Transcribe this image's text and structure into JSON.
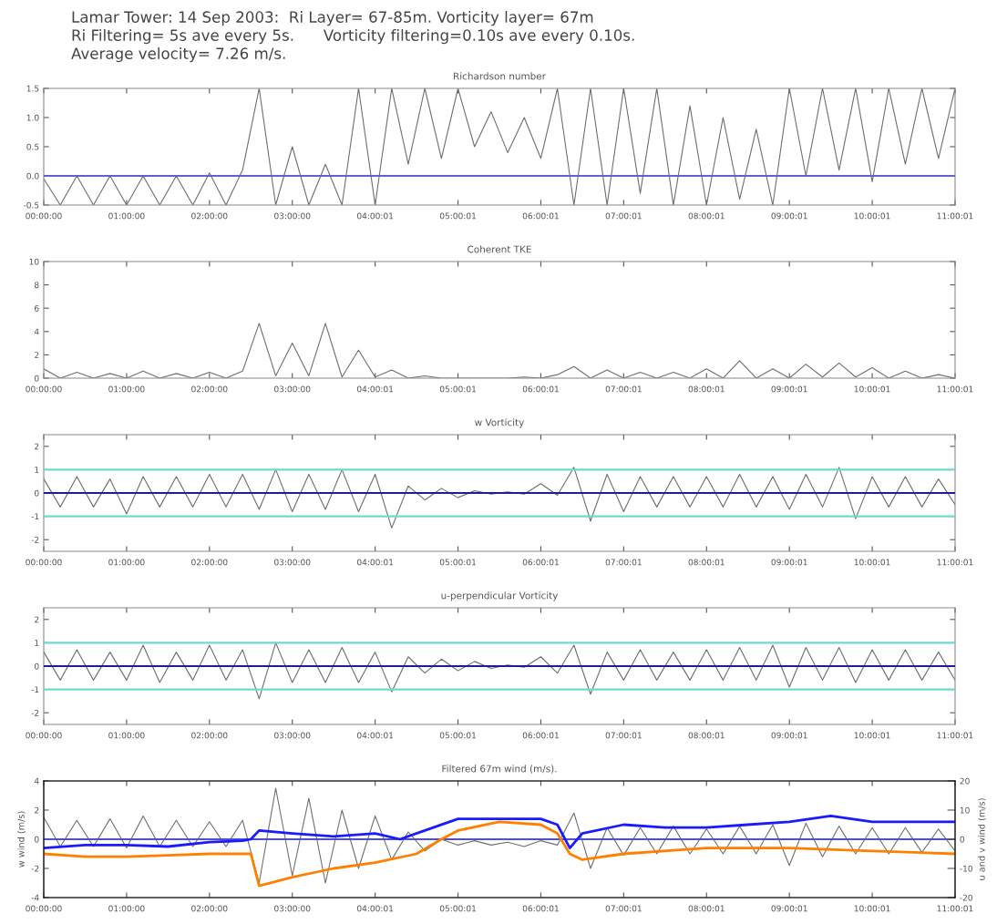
{
  "chart_data": [
    {
      "type": "line",
      "title": "Richardson number",
      "annotations": [
        "Lamar Tower: 14 Sep 2003:  Ri Layer= 67-85m. Vorticity layer= 67m",
        "Ri Filtering= 5s ave every 5s.      Vorticity filtering=0.10s ave every 0.10s.",
        "Average velocity= 7.26 m/s."
      ],
      "x": [
        0,
        0.2,
        0.4,
        0.6,
        0.8,
        1.0,
        1.2,
        1.4,
        1.6,
        1.8,
        2.0,
        2.2,
        2.4,
        2.6,
        2.8,
        3.0,
        3.2,
        3.4,
        3.6,
        3.8,
        4.0,
        4.2,
        4.4,
        4.6,
        4.8,
        5.0,
        5.2,
        5.4,
        5.6,
        5.8,
        6.0,
        6.2,
        6.4,
        6.6,
        6.8,
        7.0,
        7.2,
        7.4,
        7.6,
        7.8,
        8.0,
        8.2,
        8.4,
        8.6,
        8.8,
        9.0,
        9.2,
        9.4,
        9.6,
        9.8,
        10.0,
        10.2,
        10.4,
        10.6,
        10.8,
        11.0
      ],
      "series": [
        {
          "color": "#6e6e6e",
          "values": [
            -0.05,
            -0.5,
            0.0,
            -0.5,
            0.0,
            -0.5,
            0.0,
            -0.5,
            0.0,
            -0.5,
            0.05,
            -0.5,
            0.1,
            1.5,
            -0.5,
            0.5,
            -0.5,
            0.2,
            -0.5,
            1.5,
            -0.5,
            1.5,
            0.2,
            1.5,
            0.3,
            1.5,
            0.5,
            1.1,
            0.4,
            1.0,
            0.3,
            1.5,
            -0.5,
            1.5,
            -0.5,
            1.5,
            -0.3,
            1.5,
            -0.5,
            1.2,
            -0.5,
            1.0,
            -0.4,
            0.8,
            -0.5,
            1.5,
            0.0,
            1.5,
            0.1,
            1.5,
            -0.1,
            1.5,
            0.2,
            1.5,
            0.3,
            1.5
          ]
        }
      ],
      "xlim": [
        0,
        11.000278
      ],
      "xticks": [
        {
          "value": 0,
          "label": "00:00:00"
        },
        {
          "value": 1,
          "label": "01:00:00"
        },
        {
          "value": 2,
          "label": "02:00:00"
        },
        {
          "value": 3,
          "label": "03:00:00"
        },
        {
          "value": 4.000278,
          "label": "04:00:01"
        },
        {
          "value": 5.000278,
          "label": "05:00:01"
        },
        {
          "value": 6.000278,
          "label": "06:00:01"
        },
        {
          "value": 7.000278,
          "label": "07:00:01"
        },
        {
          "value": 8.000278,
          "label": "08:00:01"
        },
        {
          "value": 9.000278,
          "label": "09:00:01"
        },
        {
          "value": 10.000278,
          "label": "10:00:01"
        },
        {
          "value": 11.000278,
          "label": "11:00:01"
        }
      ],
      "ylim": [
        -0.5,
        1.5
      ],
      "yticks": [
        {
          "value": -0.5,
          "label": "-0.5"
        },
        {
          "value": 0,
          "label": "0.0"
        },
        {
          "value": 0.5,
          "label": "0.5"
        },
        {
          "value": 1,
          "label": "1.0"
        },
        {
          "value": 1.5,
          "label": "1.5"
        }
      ],
      "ref_lines": [
        {
          "axis": "y",
          "value": 0,
          "color": "#6060d0"
        }
      ],
      "grid": false,
      "legend": false
    },
    {
      "type": "line",
      "title": "Coherent TKE",
      "x": [
        0,
        0.2,
        0.4,
        0.6,
        0.8,
        1.0,
        1.2,
        1.4,
        1.6,
        1.8,
        2.0,
        2.2,
        2.4,
        2.6,
        2.8,
        3.0,
        3.2,
        3.4,
        3.6,
        3.8,
        4.0,
        4.2,
        4.4,
        4.6,
        4.8,
        5.0,
        5.2,
        5.4,
        5.6,
        5.8,
        6.0,
        6.2,
        6.4,
        6.6,
        6.8,
        7.0,
        7.2,
        7.4,
        7.6,
        7.8,
        8.0,
        8.2,
        8.4,
        8.6,
        8.8,
        9.0,
        9.2,
        9.4,
        9.6,
        9.8,
        10.0,
        10.2,
        10.4,
        10.6,
        10.8,
        11.0
      ],
      "series": [
        {
          "color": "#6e6e6e",
          "values": [
            0.8,
            0,
            0.5,
            0,
            0.4,
            0,
            0.6,
            0,
            0.4,
            0,
            0.5,
            0,
            0.6,
            4.7,
            0.2,
            3.0,
            0.2,
            4.7,
            0.1,
            2.4,
            0.1,
            0.7,
            0,
            0.2,
            0,
            0,
            0,
            0,
            0,
            0.1,
            0,
            0.3,
            1.0,
            0,
            0.7,
            0,
            0.5,
            0,
            0.5,
            0,
            0.8,
            0,
            1.5,
            0,
            0.8,
            0,
            1.2,
            0.1,
            1.3,
            0.1,
            0.9,
            0,
            0.6,
            0,
            0.3,
            0
          ]
        }
      ],
      "xlim": [
        0,
        11.000278
      ],
      "xticks": [
        {
          "value": 0,
          "label": "00:00:00"
        },
        {
          "value": 1,
          "label": "01:00:00"
        },
        {
          "value": 2,
          "label": "02:00:00"
        },
        {
          "value": 3,
          "label": "03:00:00"
        },
        {
          "value": 4.000278,
          "label": "04:00:01"
        },
        {
          "value": 5.000278,
          "label": "05:00:01"
        },
        {
          "value": 6.000278,
          "label": "06:00:01"
        },
        {
          "value": 7.000278,
          "label": "07:00:01"
        },
        {
          "value": 8.000278,
          "label": "08:00:01"
        },
        {
          "value": 9.000278,
          "label": "09:00:01"
        },
        {
          "value": 10.000278,
          "label": "10:00:01"
        },
        {
          "value": 11.000278,
          "label": "11:00:01"
        }
      ],
      "ylim": [
        0,
        10
      ],
      "yticks": [
        0,
        2,
        4,
        6,
        8,
        10
      ],
      "grid": false,
      "legend": false
    },
    {
      "type": "line",
      "title": "w Vorticity",
      "x": [
        0,
        0.2,
        0.4,
        0.6,
        0.8,
        1.0,
        1.2,
        1.4,
        1.6,
        1.8,
        2.0,
        2.2,
        2.4,
        2.6,
        2.8,
        3.0,
        3.2,
        3.4,
        3.6,
        3.8,
        4.0,
        4.2,
        4.4,
        4.6,
        4.8,
        5.0,
        5.2,
        5.4,
        5.6,
        5.8,
        6.0,
        6.2,
        6.4,
        6.6,
        6.8,
        7.0,
        7.2,
        7.4,
        7.6,
        7.8,
        8.0,
        8.2,
        8.4,
        8.6,
        8.8,
        9.0,
        9.2,
        9.4,
        9.6,
        9.8,
        10.0,
        10.2,
        10.4,
        10.6,
        10.8,
        11.0
      ],
      "series": [
        {
          "color": "#6e6e6e",
          "values": [
            0.6,
            -0.6,
            0.7,
            -0.6,
            0.6,
            -0.9,
            0.7,
            -0.6,
            0.7,
            -0.6,
            0.8,
            -0.6,
            0.8,
            -0.7,
            1.0,
            -0.8,
            0.8,
            -0.7,
            1.0,
            -0.8,
            0.8,
            -1.5,
            0.3,
            -0.3,
            0.2,
            -0.2,
            0.1,
            -0.05,
            0.05,
            -0.05,
            0.4,
            -0.1,
            1.1,
            -1.2,
            0.8,
            -0.8,
            0.7,
            -0.6,
            0.7,
            -0.6,
            0.7,
            -0.6,
            0.8,
            -0.6,
            0.7,
            -0.7,
            0.8,
            -0.6,
            1.1,
            -1.1,
            0.7,
            -0.6,
            0.7,
            -0.6,
            0.6,
            -0.5
          ]
        }
      ],
      "xlim": [
        0,
        11.000278
      ],
      "xticks": [
        {
          "value": 0,
          "label": "00:00:00"
        },
        {
          "value": 1,
          "label": "01:00:00"
        },
        {
          "value": 2,
          "label": "02:00:00"
        },
        {
          "value": 3,
          "label": "03:00:00"
        },
        {
          "value": 4.000278,
          "label": "04:00:01"
        },
        {
          "value": 5.000278,
          "label": "05:00:01"
        },
        {
          "value": 6.000278,
          "label": "06:00:01"
        },
        {
          "value": 7.000278,
          "label": "07:00:01"
        },
        {
          "value": 8.000278,
          "label": "08:00:01"
        },
        {
          "value": 9.000278,
          "label": "09:00:01"
        },
        {
          "value": 10.000278,
          "label": "10:00:01"
        },
        {
          "value": 11.000278,
          "label": "11:00:01"
        }
      ],
      "ylim": [
        -2.5,
        2.5
      ],
      "yticks": [
        -2,
        -1,
        0,
        1,
        2
      ],
      "ref_lines": [
        {
          "axis": "y",
          "value": 1,
          "color": "#70d8cc"
        },
        {
          "axis": "y",
          "value": -1,
          "color": "#70d8cc"
        },
        {
          "axis": "y",
          "value": 0,
          "color": "#1c1c9c"
        }
      ],
      "grid": false,
      "legend": false
    },
    {
      "type": "line",
      "title": "u-perpendicular Vorticity",
      "x": [
        0,
        0.2,
        0.4,
        0.6,
        0.8,
        1.0,
        1.2,
        1.4,
        1.6,
        1.8,
        2.0,
        2.2,
        2.4,
        2.6,
        2.8,
        3.0,
        3.2,
        3.4,
        3.6,
        3.8,
        4.0,
        4.2,
        4.4,
        4.6,
        4.8,
        5.0,
        5.2,
        5.4,
        5.6,
        5.8,
        6.0,
        6.2,
        6.4,
        6.6,
        6.8,
        7.0,
        7.2,
        7.4,
        7.6,
        7.8,
        8.0,
        8.2,
        8.4,
        8.6,
        8.8,
        9.0,
        9.2,
        9.4,
        9.6,
        9.8,
        10.0,
        10.2,
        10.4,
        10.6,
        10.8,
        11.0
      ],
      "series": [
        {
          "color": "#6e6e6e",
          "values": [
            0.6,
            -0.6,
            0.7,
            -0.6,
            0.6,
            -0.6,
            0.9,
            -0.7,
            0.6,
            -0.6,
            0.9,
            -0.6,
            0.7,
            -1.4,
            1.0,
            -0.7,
            0.7,
            -0.7,
            0.8,
            -0.7,
            0.6,
            -1.1,
            0.4,
            -0.3,
            0.3,
            -0.2,
            0.2,
            -0.1,
            0.05,
            -0.05,
            0.4,
            -0.3,
            0.9,
            -1.2,
            0.6,
            -0.6,
            0.7,
            -0.6,
            0.6,
            -0.6,
            0.7,
            -0.6,
            0.8,
            -0.6,
            0.9,
            -0.9,
            0.8,
            -0.6,
            0.8,
            -0.7,
            0.7,
            -0.6,
            0.7,
            -0.6,
            0.6,
            -0.6
          ]
        }
      ],
      "xlim": [
        0,
        11.000278
      ],
      "xticks": [
        {
          "value": 0,
          "label": "00:00:00"
        },
        {
          "value": 1,
          "label": "01:00:00"
        },
        {
          "value": 2,
          "label": "02:00:00"
        },
        {
          "value": 3,
          "label": "03:00:00"
        },
        {
          "value": 4.000278,
          "label": "04:00:01"
        },
        {
          "value": 5.000278,
          "label": "05:00:01"
        },
        {
          "value": 6.000278,
          "label": "06:00:01"
        },
        {
          "value": 7.000278,
          "label": "07:00:01"
        },
        {
          "value": 8.000278,
          "label": "08:00:01"
        },
        {
          "value": 9.000278,
          "label": "09:00:01"
        },
        {
          "value": 10.000278,
          "label": "10:00:01"
        },
        {
          "value": 11.000278,
          "label": "11:00:01"
        }
      ],
      "ylim": [
        -2.5,
        2.5
      ],
      "yticks": [
        -2,
        -1,
        0,
        1,
        2
      ],
      "ref_lines": [
        {
          "axis": "y",
          "value": 1,
          "color": "#70d8cc"
        },
        {
          "axis": "y",
          "value": -1,
          "color": "#70d8cc"
        },
        {
          "axis": "y",
          "value": 0,
          "color": "#1c1c9c"
        }
      ],
      "grid": false,
      "legend": false
    },
    {
      "type": "line",
      "title": "Filtered 67m wind (m/s).",
      "ylabel": "w wind (m/s)",
      "y2label": "u and v wind (m/s)",
      "x": [
        0,
        0.2,
        0.4,
        0.6,
        0.8,
        1.0,
        1.2,
        1.4,
        1.6,
        1.8,
        2.0,
        2.2,
        2.4,
        2.6,
        2.8,
        3.0,
        3.2,
        3.4,
        3.6,
        3.8,
        4.0,
        4.2,
        4.4,
        4.6,
        4.8,
        5.0,
        5.2,
        5.4,
        5.6,
        5.8,
        6.0,
        6.2,
        6.4,
        6.6,
        6.8,
        7.0,
        7.2,
        7.4,
        7.6,
        7.8,
        8.0,
        8.2,
        8.4,
        8.6,
        8.8,
        9.0,
        9.2,
        9.4,
        9.6,
        9.8,
        10.0,
        10.2,
        10.4,
        10.6,
        10.8,
        11.0
      ],
      "series": [
        {
          "color": "#6e6e6e",
          "values": [
            1.5,
            -0.5,
            1.3,
            -0.5,
            1.4,
            -0.6,
            1.6,
            -0.5,
            1.3,
            -0.5,
            1.2,
            -0.5,
            1.3,
            -3.0,
            3.5,
            -2.5,
            2.8,
            -3.0,
            2.0,
            -2.0,
            1.6,
            -1.4,
            0.5,
            -0.8,
            0.0,
            -0.4,
            -0.1,
            -0.4,
            -0.2,
            -0.5,
            -0.1,
            -0.4,
            1.8,
            -2.0,
            0.8,
            -1.1,
            0.8,
            -1.0,
            0.9,
            -1.0,
            0.7,
            -1.0,
            0.9,
            -1.0,
            1.0,
            -1.8,
            1.1,
            -1.2,
            0.9,
            -1.0,
            0.8,
            -1.0,
            0.8,
            -0.9,
            0.7,
            -0.8
          ]
        },
        {
          "color": "#ff8000",
          "axis": "y2",
          "x": [
            0,
            0.5,
            1,
            1.5,
            2,
            2.4,
            2.5,
            2.6,
            3,
            3.5,
            4,
            4.5,
            4.8,
            5,
            5.5,
            6,
            6.2,
            6.35,
            6.5,
            7,
            8,
            9,
            10,
            11
          ],
          "values": [
            -5,
            -6,
            -6,
            -5.5,
            -5,
            -5,
            -5,
            -16,
            -13,
            -10,
            -8,
            -5,
            0,
            3,
            6,
            5,
            2,
            -5,
            -7,
            -5,
            -3,
            -3,
            -4,
            -5
          ]
        },
        {
          "color": "#1a1aff",
          "axis": "y2",
          "x": [
            0,
            0.5,
            1,
            1.5,
            2,
            2.4,
            2.5,
            2.6,
            3,
            3.5,
            4,
            4.3,
            4.6,
            5,
            5.5,
            6,
            6.2,
            6.35,
            6.5,
            7,
            7.5,
            8,
            8.5,
            9,
            9.5,
            10,
            10.5,
            11
          ],
          "values": [
            -3,
            -2,
            -2,
            -2.5,
            -1,
            -0.5,
            0,
            3,
            2,
            1,
            2,
            0,
            3,
            7,
            7,
            7,
            5,
            -3,
            2,
            5,
            4,
            4,
            5,
            6,
            8,
            6,
            6,
            6
          ]
        }
      ],
      "xlim": [
        0,
        11.000278
      ],
      "xticks": [
        {
          "value": 0,
          "label": "00:00:00"
        },
        {
          "value": 1,
          "label": "01:00:00"
        },
        {
          "value": 2,
          "label": "02:00:00"
        },
        {
          "value": 3,
          "label": "03:00:00"
        },
        {
          "value": 4.000278,
          "label": "04:00:01"
        },
        {
          "value": 5.000278,
          "label": "05:00:01"
        },
        {
          "value": 6.000278,
          "label": "06:00:01"
        },
        {
          "value": 7.000278,
          "label": "07:00:01"
        },
        {
          "value": 8.000278,
          "label": "08:00:01"
        },
        {
          "value": 9.000278,
          "label": "09:00:01"
        },
        {
          "value": 10.000278,
          "label": "10:00:01"
        },
        {
          "value": 11.000278,
          "label": "11:00:01"
        }
      ],
      "ylim": [
        -4,
        4
      ],
      "yticks": [
        -4,
        -2,
        0,
        2,
        4
      ],
      "y2lim": [
        -20,
        20
      ],
      "y2ticks": [
        -20,
        -10,
        0,
        10,
        20
      ],
      "ref_lines": [
        {
          "axis": "y",
          "value": 0,
          "color": "#5050c8"
        }
      ],
      "grid": false,
      "legend": false
    }
  ]
}
